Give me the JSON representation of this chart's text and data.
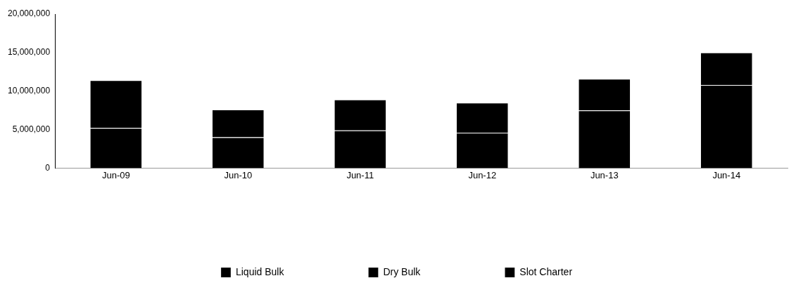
{
  "chart_data": {
    "type": "bar",
    "stacked": true,
    "categories": [
      "Jun-09",
      "Jun-10",
      "Jun-11",
      "Jun-12",
      "Jun-13",
      "Jun-14"
    ],
    "series": [
      {
        "name": "Liquid Bulk",
        "color": "#000000",
        "values": [
          5200000,
          4000000,
          4900000,
          4600000,
          7500000,
          10800000
        ]
      },
      {
        "name": "Dry Bulk",
        "color": "#000000",
        "values": [
          6200000,
          3600000,
          4000000,
          3900000,
          4100000,
          4200000
        ]
      },
      {
        "name": "Slot Charter",
        "color": "#000000",
        "values": [
          0,
          0,
          0,
          0,
          0,
          0
        ]
      }
    ],
    "ylim": [
      0,
      20000000
    ],
    "yticks": [
      {
        "value": 0,
        "label": "0"
      },
      {
        "value": 5000000,
        "label": "5,000,000"
      },
      {
        "value": 10000000,
        "label": "10,000,000"
      },
      {
        "value": 15000000,
        "label": "15,000,000"
      },
      {
        "value": 20000000,
        "label": "20,000,000"
      }
    ],
    "grid": false,
    "legend": "bottom"
  }
}
